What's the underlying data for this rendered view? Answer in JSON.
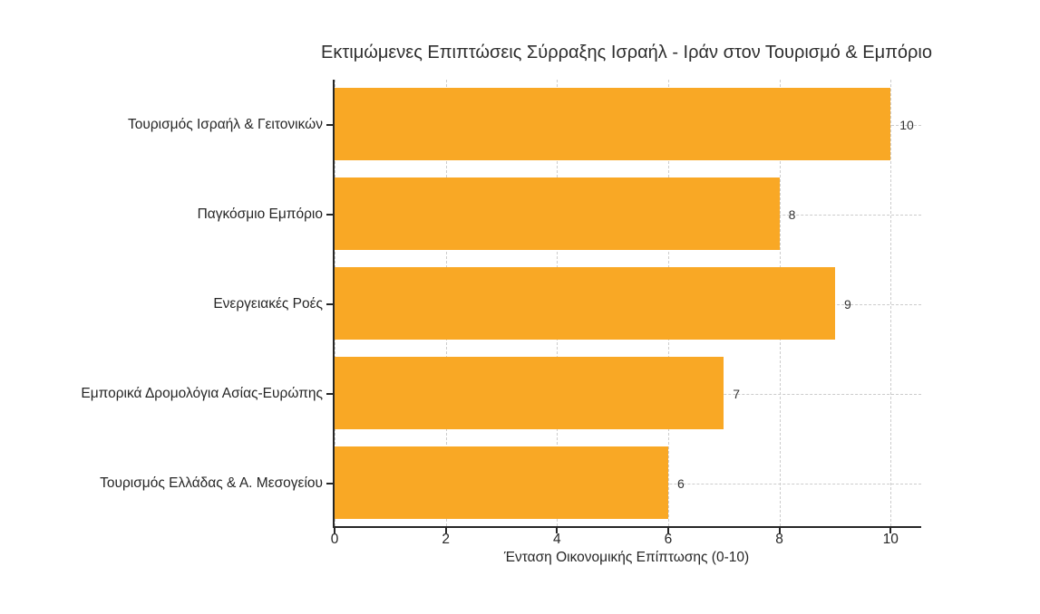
{
  "chart_data": {
    "type": "bar",
    "orientation": "horizontal",
    "title": "Εκτιμώμενες Επιπτώσεις Σύρραξης Ισραήλ - Ιράν στον Τουρισμό & Εμπόριο",
    "categories": [
      "Τουρισμός Ισραήλ & Γειτονικών",
      "Παγκόσμιο Εμπόριο",
      "Ενεργειακές Ροές",
      "Εμπορικά Δρομολόγια Ασίας-Ευρώπης",
      "Τουρισμός Ελλάδας & Α. Μεσογείου"
    ],
    "values": [
      10,
      8,
      9,
      7,
      6
    ],
    "value_labels": [
      "10",
      "8",
      "9",
      "7",
      "6"
    ],
    "xlabel": "Ένταση Οικονομικής Επίπτωσης (0-10)",
    "ylabel": "",
    "xlim": [
      0,
      10.55
    ],
    "xticks": [
      "0",
      "2",
      "4",
      "6",
      "8",
      "10"
    ],
    "xtick_values": [
      0,
      2,
      4,
      6,
      8,
      10
    ],
    "grid": true,
    "legend": "none",
    "colors": {
      "bar": "#F9A825",
      "grid": "#cccccc",
      "spine": "#262626",
      "text": "#262626",
      "background": "#ffffff"
    }
  }
}
